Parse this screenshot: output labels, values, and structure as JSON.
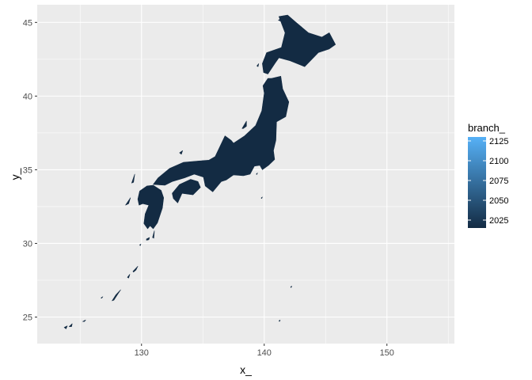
{
  "chart_data": {
    "type": "map",
    "xlabel": "x_",
    "ylabel": "y_",
    "xlim": [
      121.5,
      155.5
    ],
    "ylim": [
      23.2,
      46.2
    ],
    "x_ticks": [
      130,
      140,
      150
    ],
    "y_ticks": [
      25,
      30,
      35,
      40,
      45
    ],
    "x_tick_labels": [
      "130",
      "140",
      "150"
    ],
    "y_tick_labels": [
      "25",
      "30",
      "35",
      "40",
      "45"
    ],
    "grid": true,
    "fill_color": "#132B43",
    "panel_background": "#EBEBEB",
    "grid_color": "#FFFFFF",
    "legend": {
      "title": "branch_",
      "placement": "right",
      "range": [
        2015,
        2130
      ],
      "breaks": [
        2025,
        2050,
        2075,
        2100,
        2125
      ],
      "labels": [
        "2025",
        "2050",
        "2075",
        "2100",
        "2125"
      ],
      "low_color": "#132B43",
      "high_color": "#56B1F7"
    },
    "regions": [
      {
        "name": "Hokkaido",
        "coords": [
          [
            141.2,
            45.4
          ],
          [
            141.9,
            45.5
          ],
          [
            142.6,
            45.0
          ],
          [
            143.6,
            44.3
          ],
          [
            144.7,
            44.0
          ],
          [
            145.3,
            44.3
          ],
          [
            145.8,
            43.5
          ],
          [
            145.3,
            43.2
          ],
          [
            144.4,
            42.95
          ],
          [
            143.3,
            42.0
          ],
          [
            142.1,
            42.4
          ],
          [
            141.2,
            42.6
          ],
          [
            140.9,
            42.25
          ],
          [
            140.3,
            41.5
          ],
          [
            139.95,
            41.6
          ],
          [
            139.85,
            42.2
          ],
          [
            140.2,
            42.95
          ],
          [
            141.4,
            43.3
          ],
          [
            141.7,
            44.3
          ]
        ]
      },
      {
        "name": "Honshu",
        "coords": [
          [
            140.6,
            41.2
          ],
          [
            141.35,
            41.35
          ],
          [
            141.5,
            40.5
          ],
          [
            142.0,
            39.6
          ],
          [
            141.75,
            38.6
          ],
          [
            141.0,
            38.25
          ],
          [
            140.95,
            37.0
          ],
          [
            140.75,
            36.3
          ],
          [
            140.85,
            35.7
          ],
          [
            140.35,
            35.3
          ],
          [
            139.85,
            35.0
          ],
          [
            139.65,
            35.3
          ],
          [
            139.2,
            35.25
          ],
          [
            138.85,
            34.7
          ],
          [
            138.3,
            34.6
          ],
          [
            137.5,
            34.65
          ],
          [
            136.9,
            34.3
          ],
          [
            136.5,
            34.2
          ],
          [
            135.8,
            33.5
          ],
          [
            135.2,
            33.9
          ],
          [
            135.05,
            34.5
          ],
          [
            134.3,
            34.7
          ],
          [
            133.5,
            34.45
          ],
          [
            132.5,
            34.2
          ],
          [
            131.9,
            33.95
          ],
          [
            130.95,
            34.0
          ],
          [
            131.35,
            34.45
          ],
          [
            132.3,
            35.1
          ],
          [
            133.4,
            35.5
          ],
          [
            134.7,
            35.6
          ],
          [
            135.5,
            35.65
          ],
          [
            136.0,
            35.9
          ],
          [
            136.8,
            37.3
          ],
          [
            137.3,
            37.0
          ],
          [
            137.5,
            36.8
          ],
          [
            138.4,
            37.3
          ],
          [
            139.3,
            38.0
          ],
          [
            139.8,
            39.0
          ],
          [
            140.0,
            40.2
          ],
          [
            139.9,
            40.7
          ],
          [
            140.3,
            41.2
          ]
        ]
      },
      {
        "name": "Shikoku",
        "coords": [
          [
            132.6,
            33.05
          ],
          [
            132.5,
            33.4
          ],
          [
            133.1,
            34.0
          ],
          [
            134.0,
            34.35
          ],
          [
            134.6,
            34.2
          ],
          [
            134.8,
            33.8
          ],
          [
            134.2,
            33.3
          ],
          [
            133.3,
            33.4
          ],
          [
            132.95,
            32.75
          ]
        ]
      },
      {
        "name": "Kyushu",
        "coords": [
          [
            129.7,
            33.0
          ],
          [
            129.85,
            33.55
          ],
          [
            130.45,
            33.9
          ],
          [
            130.95,
            33.95
          ],
          [
            131.6,
            33.6
          ],
          [
            131.8,
            33.1
          ],
          [
            131.7,
            32.4
          ],
          [
            131.3,
            31.4
          ],
          [
            130.95,
            31.0
          ],
          [
            130.7,
            31.2
          ],
          [
            130.5,
            31.0
          ],
          [
            130.2,
            31.35
          ],
          [
            130.3,
            32.0
          ],
          [
            130.6,
            32.6
          ],
          [
            130.1,
            32.7
          ],
          [
            129.8,
            32.6
          ]
        ]
      },
      {
        "name": "Sado",
        "coords": [
          [
            138.2,
            37.8
          ],
          [
            138.55,
            38.3
          ],
          [
            138.55,
            37.95
          ],
          [
            138.3,
            37.8
          ]
        ]
      },
      {
        "name": "Tanegashima",
        "coords": [
          [
            130.9,
            30.4
          ],
          [
            131.05,
            30.85
          ],
          [
            131.0,
            30.35
          ]
        ]
      },
      {
        "name": "Yakushima",
        "coords": [
          [
            130.4,
            30.3
          ],
          [
            130.65,
            30.4
          ],
          [
            130.6,
            30.25
          ],
          [
            130.4,
            30.22
          ]
        ]
      },
      {
        "name": "Amami",
        "coords": [
          [
            129.3,
            28.1
          ],
          [
            129.7,
            28.45
          ],
          [
            129.55,
            28.2
          ],
          [
            129.35,
            28.05
          ]
        ]
      },
      {
        "name": "Tokunoshima",
        "coords": [
          [
            128.85,
            27.7
          ],
          [
            129.05,
            27.9
          ],
          [
            128.95,
            27.65
          ]
        ]
      },
      {
        "name": "Okinawa",
        "coords": [
          [
            127.6,
            26.1
          ],
          [
            127.9,
            26.5
          ],
          [
            128.3,
            26.85
          ],
          [
            128.1,
            26.6
          ],
          [
            127.75,
            26.15
          ]
        ]
      },
      {
        "name": "Kumejima",
        "coords": [
          [
            126.7,
            26.3
          ],
          [
            126.85,
            26.38
          ],
          [
            126.75,
            26.28
          ]
        ]
      },
      {
        "name": "Miyako",
        "coords": [
          [
            125.2,
            24.7
          ],
          [
            125.45,
            24.8
          ],
          [
            125.35,
            24.7
          ]
        ]
      },
      {
        "name": "Ishigaki",
        "coords": [
          [
            124.1,
            24.35
          ],
          [
            124.35,
            24.55
          ],
          [
            124.3,
            24.35
          ]
        ]
      },
      {
        "name": "Iriomote",
        "coords": [
          [
            123.7,
            24.3
          ],
          [
            123.95,
            24.4
          ],
          [
            123.85,
            24.2
          ]
        ]
      },
      {
        "name": "Tsushima",
        "coords": [
          [
            129.2,
            34.1
          ],
          [
            129.45,
            34.7
          ],
          [
            129.35,
            34.15
          ]
        ]
      },
      {
        "name": "Goto",
        "coords": [
          [
            128.7,
            32.6
          ],
          [
            129.1,
            33.1
          ],
          [
            128.95,
            32.7
          ]
        ]
      },
      {
        "name": "Oki",
        "coords": [
          [
            133.1,
            36.15
          ],
          [
            133.35,
            36.3
          ],
          [
            133.25,
            36.05
          ]
        ]
      },
      {
        "name": "Rishiri",
        "coords": [
          [
            141.15,
            45.15
          ],
          [
            141.35,
            45.25
          ],
          [
            141.3,
            45.1
          ]
        ]
      },
      {
        "name": "Okushiri",
        "coords": [
          [
            139.4,
            42.05
          ],
          [
            139.55,
            42.2
          ],
          [
            139.5,
            42.0
          ]
        ]
      },
      {
        "name": "Izu-Oshima",
        "coords": [
          [
            139.35,
            34.7
          ],
          [
            139.45,
            34.78
          ],
          [
            139.4,
            34.68
          ]
        ]
      },
      {
        "name": "Hachijo",
        "coords": [
          [
            139.75,
            33.08
          ],
          [
            139.85,
            33.15
          ],
          [
            139.8,
            33.05
          ]
        ]
      },
      {
        "name": "Ogasawara",
        "coords": [
          [
            142.15,
            27.05
          ],
          [
            142.25,
            27.1
          ],
          [
            142.2,
            27.0
          ]
        ]
      },
      {
        "name": "Kuchinoerabu",
        "coords": [
          [
            129.85,
            29.9
          ],
          [
            129.95,
            29.95
          ],
          [
            129.9,
            29.85
          ]
        ]
      },
      {
        "name": "Minami-Torishima-area",
        "coords": [
          [
            141.2,
            24.75
          ],
          [
            141.3,
            24.8
          ],
          [
            141.25,
            24.7
          ]
        ]
      }
    ]
  }
}
